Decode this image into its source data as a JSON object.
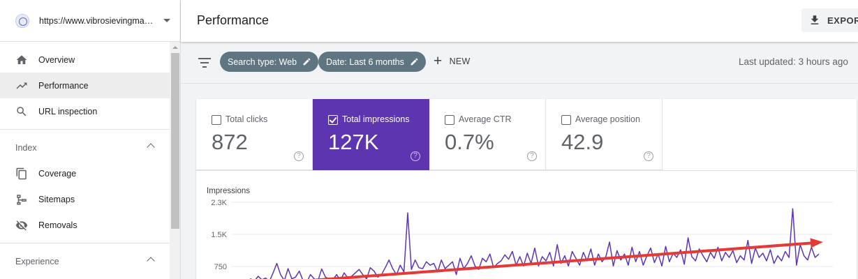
{
  "sidebar": {
    "property_url": "https://www.vibrosievingmachine.com/",
    "items": [
      {
        "label": "Overview",
        "icon": "home-icon"
      },
      {
        "label": "Performance",
        "icon": "trending-up-icon"
      },
      {
        "label": "URL inspection",
        "icon": "search-icon"
      }
    ],
    "sections": [
      {
        "label": "Index",
        "items": [
          {
            "label": "Coverage",
            "icon": "coverage-icon"
          },
          {
            "label": "Sitemaps",
            "icon": "sitemap-icon"
          },
          {
            "label": "Removals",
            "icon": "eye-off-icon"
          }
        ]
      },
      {
        "label": "Experience"
      }
    ]
  },
  "header": {
    "title": "Performance",
    "export_label": "EXPORT"
  },
  "filters": {
    "chips": [
      {
        "label": "Search type: Web"
      },
      {
        "label": "Date: Last 6 months"
      }
    ],
    "new_label": "NEW",
    "last_updated": "Last updated: 3 hours ago"
  },
  "metrics": [
    {
      "label": "Total clicks",
      "value": "872",
      "selected": false
    },
    {
      "label": "Total impressions",
      "value": "127K",
      "selected": true
    },
    {
      "label": "Average CTR",
      "value": "0.7%",
      "selected": false
    },
    {
      "label": "Average position",
      "value": "42.9",
      "selected": false
    }
  ],
  "colors": {
    "accent": "#5e35b1",
    "chip": "#5f7682",
    "line": "#5e35b1",
    "trend_arrow": "#e53935"
  },
  "chart_data": {
    "type": "line",
    "title": "Impressions",
    "ylabel": "Impressions",
    "y_ticks": [
      "2.3K",
      "1.5K",
      "750"
    ],
    "y_tick_values": [
      2250,
      1500,
      750
    ],
    "ylim": [
      0,
      2250
    ],
    "series": [
      {
        "name": "Impressions",
        "values": [
          380,
          420,
          390,
          460,
          410,
          520,
          440,
          480,
          400,
          600,
          820,
          560,
          420,
          700,
          460,
          500,
          640,
          420,
          380,
          560,
          460,
          420,
          690,
          500,
          460,
          440,
          560,
          420,
          600,
          480,
          520,
          600,
          680,
          560,
          460,
          720,
          640,
          500,
          560,
          720,
          900,
          700,
          560,
          780,
          620,
          2000,
          680,
          900,
          720,
          700,
          860,
          780,
          820,
          620,
          900,
          700,
          780,
          860,
          560,
          940,
          700,
          820,
          1000,
          760,
          680,
          940,
          860,
          1040,
          720,
          820,
          880,
          1020,
          920,
          1100,
          780,
          980,
          760,
          1060,
          820,
          1180,
          760,
          980,
          880,
          1080,
          760,
          1260,
          820,
          1000,
          760,
          1100,
          940,
          780,
          1080,
          880,
          1160,
          780,
          1040,
          860,
          980,
          1320,
          760,
          1120,
          900,
          1040,
          780,
          1200,
          860,
          1100,
          780,
          1000,
          1180,
          840,
          1040,
          760,
          1220,
          860,
          1060,
          960,
          1140,
          800,
          1420,
          980,
          880,
          1160,
          1000,
          860,
          1080,
          940,
          1200,
          880,
          1080,
          960,
          1120,
          840,
          1000,
          900,
          1360,
          820,
          1180,
          960,
          1060,
          880,
          1140,
          820,
          1000,
          880,
          1100,
          960,
          2100,
          780,
          1260,
          1000,
          900,
          1200,
          960,
          1040
        ]
      }
    ],
    "trend": {
      "start": 300,
      "end": 1320
    }
  }
}
